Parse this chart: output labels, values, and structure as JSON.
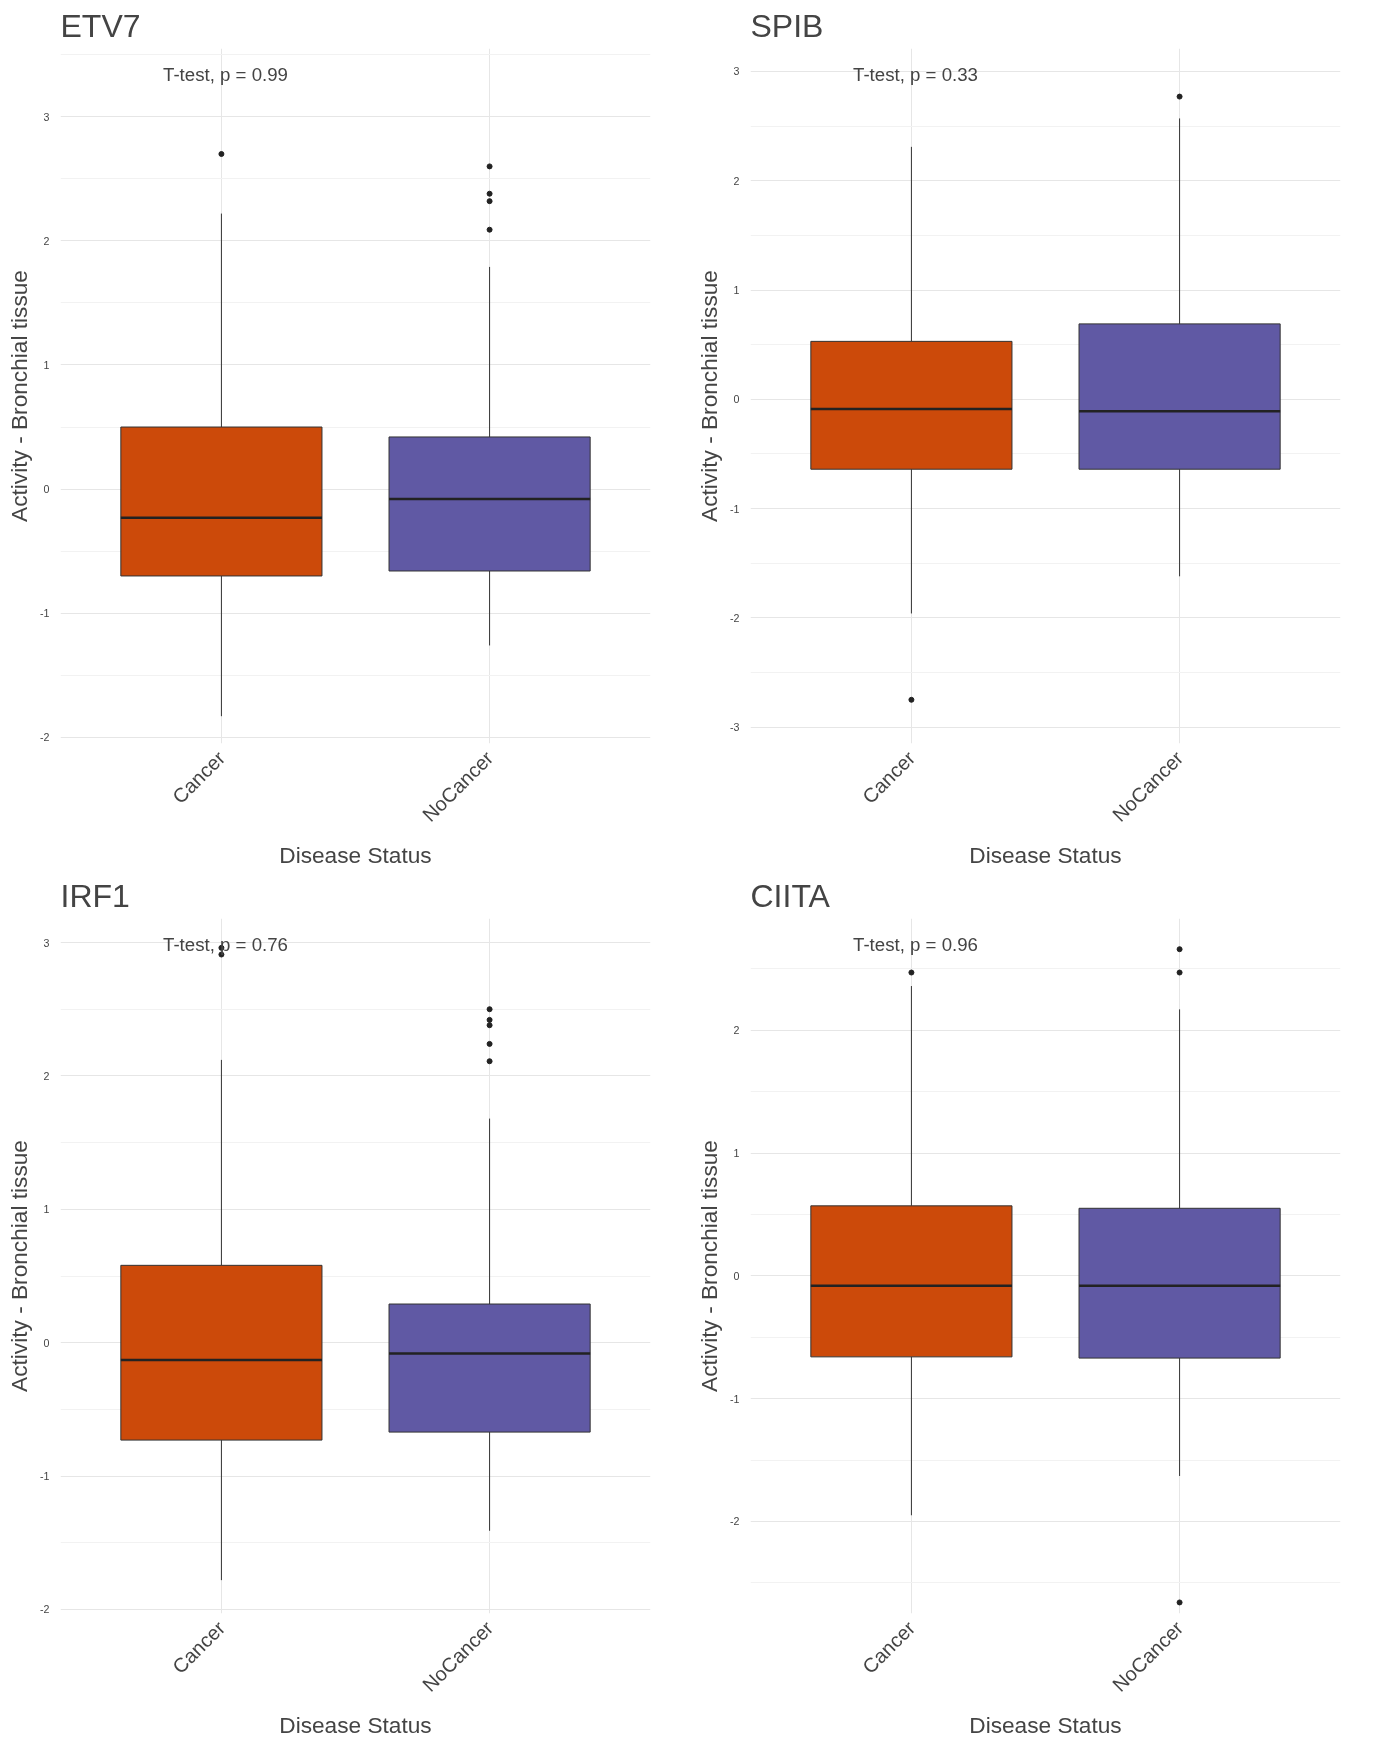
{
  "chart_data": [
    {
      "type": "box",
      "title": "ETV7",
      "xlabel": "Disease Status",
      "ylabel": "Activity - Bronchial tissue",
      "categories": [
        "Cancer",
        "NoCancer"
      ],
      "colors": [
        "#cc4a0a",
        "#6059a4"
      ],
      "boxes": [
        {
          "low": -1.83,
          "q1": -0.7,
          "median": -0.23,
          "q3": 0.5,
          "high": 2.22,
          "outliers": [
            2.7
          ]
        },
        {
          "low": -1.26,
          "q1": -0.66,
          "median": -0.08,
          "q3": 0.42,
          "high": 1.79,
          "outliers": [
            2.6,
            2.38,
            2.32,
            2.09
          ]
        }
      ],
      "ylim": [
        -2.05,
        3.55
      ],
      "yticks": [
        -2,
        -1,
        0,
        1,
        2,
        3
      ],
      "grid": true,
      "annotations": [
        "T-test, p = 0.99"
      ]
    },
    {
      "type": "box",
      "title": "SPIB",
      "xlabel": "Disease Status",
      "ylabel": "Activity - Bronchial tissue",
      "categories": [
        "Cancer",
        "NoCancer"
      ],
      "colors": [
        "#cc4a0a",
        "#6059a4"
      ],
      "boxes": [
        {
          "low": -1.96,
          "q1": -0.64,
          "median": -0.09,
          "q3": 0.53,
          "high": 2.31,
          "outliers": [
            -2.75
          ]
        },
        {
          "low": -1.62,
          "q1": -0.64,
          "median": -0.11,
          "q3": 0.69,
          "high": 2.57,
          "outliers": [
            2.77
          ]
        }
      ],
      "ylim": [
        -3.15,
        3.21
      ],
      "yticks": [
        -3,
        -2,
        -1,
        0,
        1,
        2,
        3
      ],
      "grid": true,
      "annotations": [
        "T-test, p = 0.33"
      ]
    },
    {
      "type": "box",
      "title": "IRF1",
      "xlabel": "Disease Status",
      "ylabel": "Activity - Bronchial tissue",
      "categories": [
        "Cancer",
        "NoCancer"
      ],
      "colors": [
        "#cc4a0a",
        "#6059a4"
      ],
      "boxes": [
        {
          "low": -1.78,
          "q1": -0.73,
          "median": -0.13,
          "q3": 0.58,
          "high": 2.12,
          "outliers": [
            2.96,
            2.91
          ]
        },
        {
          "low": -1.41,
          "q1": -0.67,
          "median": -0.08,
          "q3": 0.29,
          "high": 1.68,
          "outliers": [
            2.5,
            2.42,
            2.38,
            2.24,
            2.11
          ]
        }
      ],
      "ylim": [
        -2.03,
        3.18
      ],
      "yticks": [
        -2,
        -1,
        0,
        1,
        2,
        3
      ],
      "grid": true,
      "annotations": [
        "T-test, p = 0.76"
      ]
    },
    {
      "type": "box",
      "title": "CIITA",
      "xlabel": "Disease Status",
      "ylabel": "Activity - Bronchial tissue",
      "categories": [
        "Cancer",
        "NoCancer"
      ],
      "colors": [
        "#cc4a0a",
        "#6059a4"
      ],
      "boxes": [
        {
          "low": -1.95,
          "q1": -0.66,
          "median": -0.08,
          "q3": 0.57,
          "high": 2.36,
          "outliers": [
            2.47
          ]
        },
        {
          "low": -1.63,
          "q1": -0.67,
          "median": -0.08,
          "q3": 0.55,
          "high": 2.17,
          "outliers": [
            2.66,
            2.47,
            -2.66
          ]
        }
      ],
      "ylim": [
        -2.75,
        2.91
      ],
      "yticks": [
        -2,
        -1,
        0,
        1,
        2
      ],
      "grid": true,
      "annotations": [
        "T-test, p = 0.96"
      ]
    }
  ]
}
